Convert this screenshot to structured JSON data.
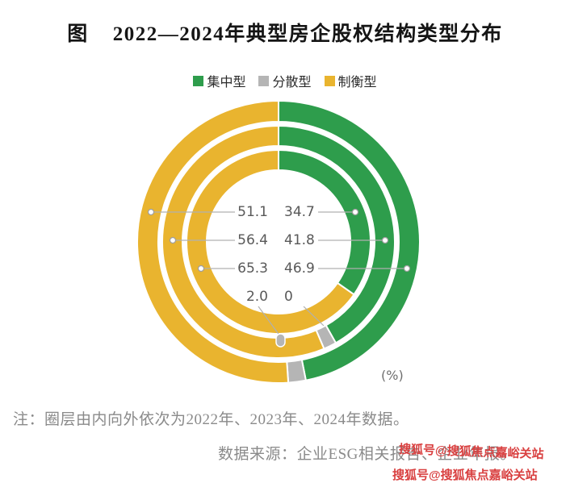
{
  "header": {
    "prefix": "图",
    "title": "2022—2024年典型房企股权结构类型分布"
  },
  "chart_data": {
    "type": "donut",
    "title": "2022—2024年典型房企股权结构类型分布",
    "unit_label": "(%)",
    "legend": [
      {
        "label": "集中型",
        "color": "#2e9d4c"
      },
      {
        "label": "分散型",
        "color": "#b5b5b5"
      },
      {
        "label": "制衡型",
        "color": "#e9b42f"
      }
    ],
    "rings_inner_to_outer": [
      "2022年",
      "2023年",
      "2024年"
    ],
    "series": [
      {
        "name": "2022年",
        "ring": "inner",
        "values": [
          34.7,
          0,
          65.3
        ]
      },
      {
        "name": "2023年",
        "ring": "middle",
        "values": [
          41.8,
          1.8,
          56.4
        ]
      },
      {
        "name": "2024年",
        "ring": "outer",
        "values": [
          46.9,
          2.0,
          51.1
        ]
      }
    ],
    "center_labels": {
      "rows": [
        {
          "left": "51.1",
          "right": "34.7"
        },
        {
          "left": "56.4",
          "right": "41.8"
        },
        {
          "left": "65.3",
          "right": "46.9"
        },
        {
          "left": "2.0",
          "right": "0"
        }
      ],
      "left_column_meaning": "制衡型 (rows top→bottom: 2024外圈, 2023中圈, 2022内圈)",
      "right_column_meaning": "集中型 (rows top→bottom: 2022内圈, 2023中圈, 2024外圈)"
    },
    "layout": {
      "start_angle_deg": 0,
      "direction": "clockwise",
      "legend_position": "top"
    }
  },
  "note": "注：圈层由内向外依次为2022年、2023年、2024年数据。",
  "source": "数据来源：企业ESG相关报告、企业年报。",
  "watermark": {
    "color": "#d94040",
    "lines": [
      "搜狐号@搜狐焦点嘉峪关站",
      "搜狐号@搜狐焦点嘉峪关站"
    ]
  }
}
